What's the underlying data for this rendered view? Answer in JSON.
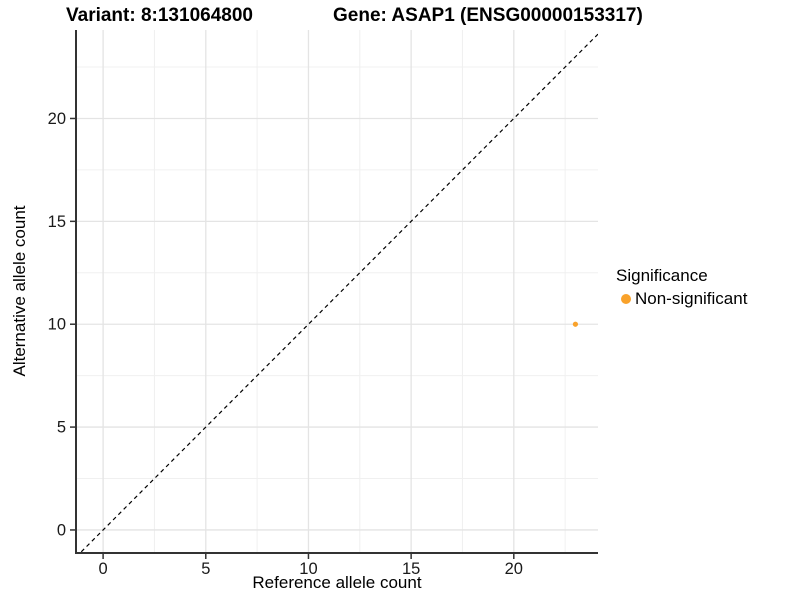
{
  "figure": {
    "title_left": "Variant: 8:131064800",
    "title_right": "Gene: ASAP1 (ENSG00000153317)"
  },
  "chart_data": {
    "type": "scatter",
    "xlabel": "Reference allele count",
    "ylabel": "Alternative allele count",
    "xlim": [
      -1.32,
      24.1
    ],
    "ylim": [
      -1.12,
      24.3
    ],
    "x_major_ticks": [
      0,
      5,
      10,
      15,
      20
    ],
    "y_major_ticks": [
      0,
      5,
      10,
      15,
      20
    ],
    "x_minor_gridlines": [
      2.5,
      7.5,
      12.5,
      17.5,
      22.5
    ],
    "y_minor_gridlines": [
      2.5,
      7.5,
      12.5,
      17.5,
      22.5
    ],
    "grid": true,
    "identity_line": {
      "style": "dashed",
      "slope": 1,
      "intercept": 0,
      "color": "#000000"
    },
    "points": [
      {
        "x": 23,
        "y": 10,
        "series": "Non-significant",
        "color": "#F9A22B"
      }
    ],
    "legend": {
      "title": "Significance",
      "position": "right",
      "entries": [
        {
          "label": "Non-significant",
          "color": "#F9A22B"
        }
      ]
    },
    "colors": {
      "axis_line": "#333333",
      "tick_label": "#1A1A1A",
      "grid_major": "#E4E4E4",
      "grid_minor": "#F0F0F0",
      "background": "#FFFFFF"
    }
  }
}
